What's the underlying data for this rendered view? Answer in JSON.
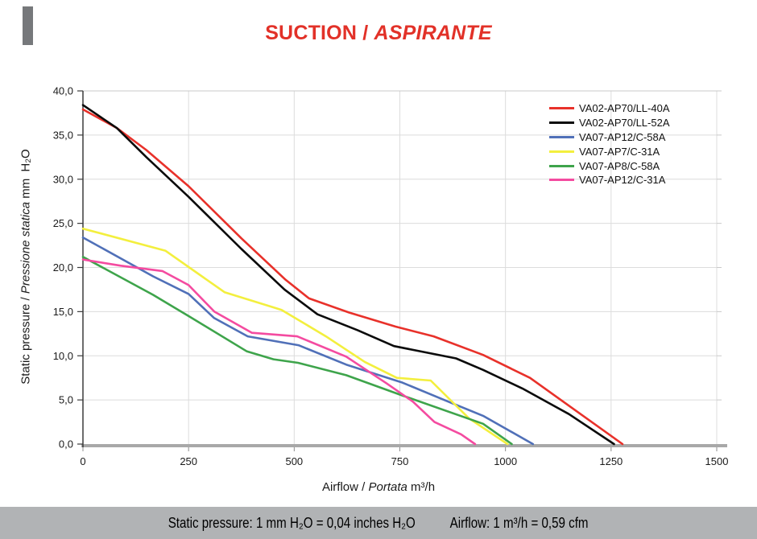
{
  "title": {
    "part1": "SUCTION /",
    "part2": "ASPIRANTE"
  },
  "y_axis_title": {
    "normal": "Static pressure /",
    "italic": "Pressione statica",
    "unit": "mm H₂O"
  },
  "x_axis_title": {
    "normal": "Airflow /",
    "italic": "Portata",
    "unit": "m³/h"
  },
  "footer": {
    "pressure_note": "Static pressure: 1 mm H₂O = 0,04 inches H₂O",
    "airflow_note": "Airflow: 1 m³/h = 0,59 cfm"
  },
  "chart_data": {
    "type": "line",
    "title": "SUCTION / ASPIRANTE",
    "xlabel": "Airflow / Portata m³/h",
    "ylabel": "Static pressure / Pressione statica mm H₂O",
    "xlim": [
      0,
      1500
    ],
    "ylim": [
      0,
      40
    ],
    "x_tick_labels": [
      "0",
      "250",
      "500",
      "750",
      "1000",
      "1250",
      "1500"
    ],
    "y_tick_labels": [
      "0,0",
      "5,0",
      "10,0",
      "15,0",
      "20,0",
      "25,0",
      "30,0",
      "35,0",
      "40,0"
    ],
    "grid": true,
    "legend_position": "top-right",
    "colors": {
      "grid": "#dcdcdc",
      "plot_border": "#c9c9c9",
      "x_axis": "#a8a8a8",
      "y_axis": "#3c3c3c",
      "title_red": "#e23128",
      "footer_bg": "#b1b3b5"
    },
    "series": [
      {
        "name": "VA02-AP70/LL-40A",
        "color": "#e8312a",
        "points": [
          [
            0,
            37.9
          ],
          [
            80,
            35.8
          ],
          [
            150,
            33.3
          ],
          [
            250,
            29.2
          ],
          [
            375,
            23.3
          ],
          [
            480,
            18.6
          ],
          [
            535,
            16.5
          ],
          [
            630,
            14.9
          ],
          [
            740,
            13.3
          ],
          [
            830,
            12.2
          ],
          [
            947,
            10.1
          ],
          [
            1058,
            7.5
          ],
          [
            1277,
            0
          ]
        ]
      },
      {
        "name": "VA02-AP70/LL-52A",
        "color": "#0b0b0b",
        "points": [
          [
            0,
            38.4
          ],
          [
            80,
            35.8
          ],
          [
            150,
            32.5
          ],
          [
            250,
            28.0
          ],
          [
            375,
            22.1
          ],
          [
            477,
            17.5
          ],
          [
            555,
            14.7
          ],
          [
            650,
            12.9
          ],
          [
            736,
            11.1
          ],
          [
            883,
            9.7
          ],
          [
            947,
            8.4
          ],
          [
            1040,
            6.3
          ],
          [
            1150,
            3.4
          ],
          [
            1257,
            0
          ]
        ]
      },
      {
        "name": "VA07-AP12/C-58A",
        "color": "#5070b8",
        "points": [
          [
            0,
            23.4
          ],
          [
            166,
            19.0
          ],
          [
            250,
            17.0
          ],
          [
            310,
            14.3
          ],
          [
            390,
            12.2
          ],
          [
            510,
            11.2
          ],
          [
            623,
            9.0
          ],
          [
            754,
            7.0
          ],
          [
            870,
            4.7
          ],
          [
            947,
            3.2
          ],
          [
            1065,
            0
          ]
        ]
      },
      {
        "name": "VA07-AP7/C-31A",
        "color": "#f3ef3e",
        "points": [
          [
            0,
            24.4
          ],
          [
            195,
            21.9
          ],
          [
            335,
            17.2
          ],
          [
            470,
            15.2
          ],
          [
            575,
            12.2
          ],
          [
            667,
            9.3
          ],
          [
            743,
            7.5
          ],
          [
            823,
            7.2
          ],
          [
            914,
            2.9
          ],
          [
            1005,
            0
          ]
        ]
      },
      {
        "name": "VA07-AP8/C-58A",
        "color": "#3ea44b",
        "points": [
          [
            0,
            21.2
          ],
          [
            166,
            16.9
          ],
          [
            250,
            14.5
          ],
          [
            388,
            10.5
          ],
          [
            451,
            9.6
          ],
          [
            509,
            9.2
          ],
          [
            623,
            7.8
          ],
          [
            756,
            5.5
          ],
          [
            947,
            2.3
          ],
          [
            1015,
            0
          ]
        ]
      },
      {
        "name": "VA07-AP12/C-31A",
        "color": "#f44ba0",
        "points": [
          [
            0,
            20.9
          ],
          [
            90,
            20.2
          ],
          [
            188,
            19.6
          ],
          [
            250,
            18.0
          ],
          [
            311,
            15.0
          ],
          [
            400,
            12.6
          ],
          [
            507,
            12.2
          ],
          [
            623,
            9.9
          ],
          [
            718,
            6.9
          ],
          [
            781,
            4.8
          ],
          [
            832,
            2.5
          ],
          [
            895,
            1.1
          ],
          [
            928,
            0
          ]
        ]
      }
    ]
  }
}
